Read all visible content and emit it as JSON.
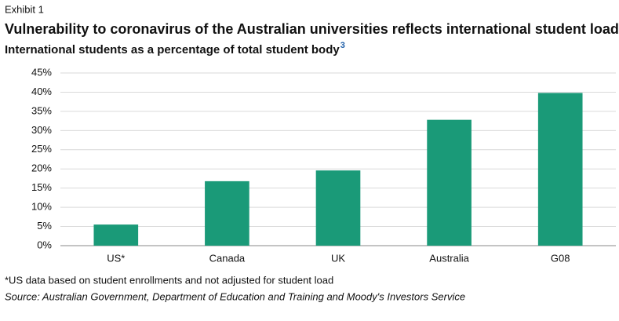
{
  "chart_data": {
    "type": "bar",
    "exhibit": "Exhibit 1",
    "title": "Vulnerability to coronavirus of the Australian universities reflects international student load",
    "subtitle": "International students as a percentage of total student body",
    "subtitle_superscript": "3",
    "categories": [
      "US*",
      "Canada",
      "UK",
      "Australia",
      "G08"
    ],
    "values": [
      5.5,
      16.8,
      19.6,
      32.8,
      39.8
    ],
    "color": "#1a9a78",
    "ylim": [
      0,
      45
    ],
    "yticks": [
      {
        "value": 0,
        "label": "0%"
      },
      {
        "value": 5,
        "label": "5%"
      },
      {
        "value": 10,
        "label": "10%"
      },
      {
        "value": 15,
        "label": "15%"
      },
      {
        "value": 20,
        "label": "20%"
      },
      {
        "value": 25,
        "label": "25%"
      },
      {
        "value": 30,
        "label": "30%"
      },
      {
        "value": 35,
        "label": "35%"
      },
      {
        "value": 40,
        "label": "40%"
      },
      {
        "value": 45,
        "label": "45%"
      }
    ],
    "grid": true,
    "footnote": "*US data based on student enrollments and not adjusted for student load",
    "source": "Source: Australian Government, Department of Education and Training and Moody's Investors Service"
  }
}
